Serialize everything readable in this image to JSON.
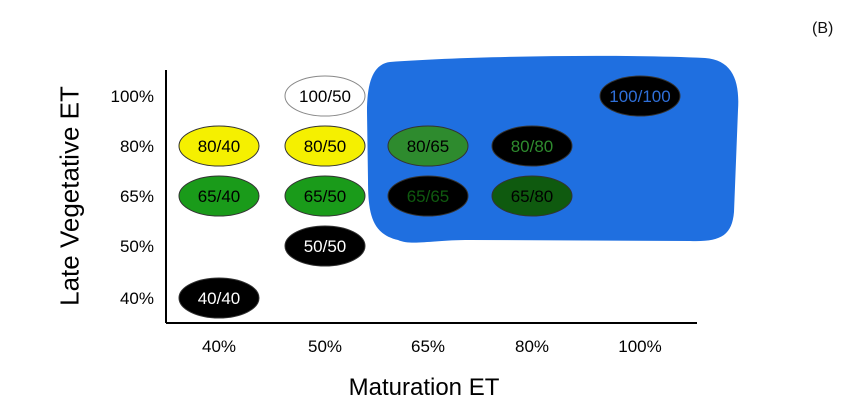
{
  "panel_label": "(B)",
  "chart_data": {
    "type": "scatter",
    "xlabel": "Maturation ET",
    "ylabel": "Late Vegetative ET",
    "x_categories": [
      "40%",
      "50%",
      "65%",
      "80%",
      "100%"
    ],
    "y_categories": [
      "40%",
      "50%",
      "65%",
      "80%",
      "100%"
    ],
    "region_color": "#1f6fe0",
    "points": [
      {
        "label": "100/50",
        "x": "50%",
        "y": "100%",
        "fill": "#ffffff",
        "text_color": "#000000"
      },
      {
        "label": "100/100",
        "x": "100%",
        "y": "100%",
        "fill": "#000000",
        "text_color": "#2f6fd8"
      },
      {
        "label": "80/40",
        "x": "40%",
        "y": "80%",
        "fill": "#f5f000",
        "text_color": "#000000"
      },
      {
        "label": "80/50",
        "x": "50%",
        "y": "80%",
        "fill": "#f5f000",
        "text_color": "#000000"
      },
      {
        "label": "80/65",
        "x": "65%",
        "y": "80%",
        "fill": "#2e8b2e",
        "text_color": "#000000"
      },
      {
        "label": "80/80",
        "x": "80%",
        "y": "80%",
        "fill": "#000000",
        "text_color": "#2e8b2e"
      },
      {
        "label": "65/40",
        "x": "40%",
        "y": "65%",
        "fill": "#1a9b1a",
        "text_color": "#000000"
      },
      {
        "label": "65/50",
        "x": "50%",
        "y": "65%",
        "fill": "#1a9b1a",
        "text_color": "#000000"
      },
      {
        "label": "65/65",
        "x": "65%",
        "y": "65%",
        "fill": "#000000",
        "text_color": "#0f5a0f"
      },
      {
        "label": "65/80",
        "x": "80%",
        "y": "65%",
        "fill": "#0f5a0f",
        "text_color": "#000000"
      },
      {
        "label": "50/50",
        "x": "50%",
        "y": "50%",
        "fill": "#000000",
        "text_color": "#ffffff"
      },
      {
        "label": "40/40",
        "x": "40%",
        "y": "40%",
        "fill": "#000000",
        "text_color": "#ffffff"
      }
    ]
  }
}
